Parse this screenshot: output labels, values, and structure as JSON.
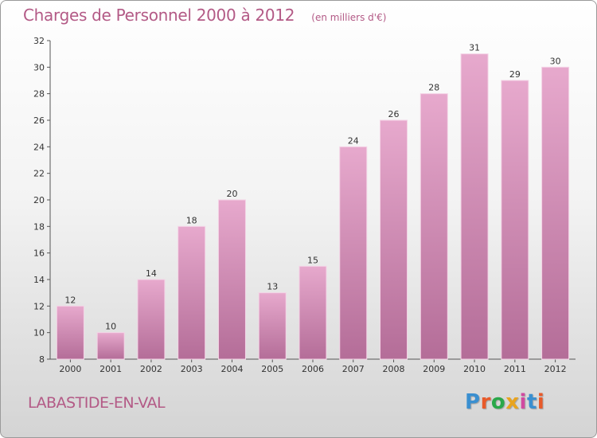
{
  "header": {
    "title": "Charges de Personnel 2000 à 2012",
    "subtitle": "(en milliers d'€)"
  },
  "footer": {
    "commune": "LABASTIDE-EN-VAL",
    "logo": {
      "text": "Proxiti",
      "colors": [
        "#3a8fd0",
        "#e85a2a",
        "#2aa84a",
        "#e8a41f",
        "#d04aa0",
        "#3a8fd0",
        "#e85a2a"
      ]
    }
  },
  "chart_data": {
    "type": "bar",
    "title": "Charges de Personnel 2000 à 2012",
    "subtitle": "(en milliers d'€)",
    "categories": [
      "2000",
      "2001",
      "2002",
      "2003",
      "2004",
      "2005",
      "2006",
      "2007",
      "2008",
      "2009",
      "2010",
      "2011",
      "2012"
    ],
    "values": [
      12,
      10,
      14,
      18,
      20,
      13,
      15,
      24,
      26,
      28,
      31,
      29,
      30
    ],
    "ylim": [
      8,
      32
    ],
    "yticks": [
      8,
      10,
      12,
      14,
      16,
      18,
      20,
      22,
      24,
      26,
      28,
      30,
      32
    ],
    "grid": false,
    "data_labels": true,
    "colors": {
      "bar_top": "#e7a9cd",
      "bar_bottom": "#b46d98",
      "label": "#333333",
      "axis": "#555555"
    }
  }
}
